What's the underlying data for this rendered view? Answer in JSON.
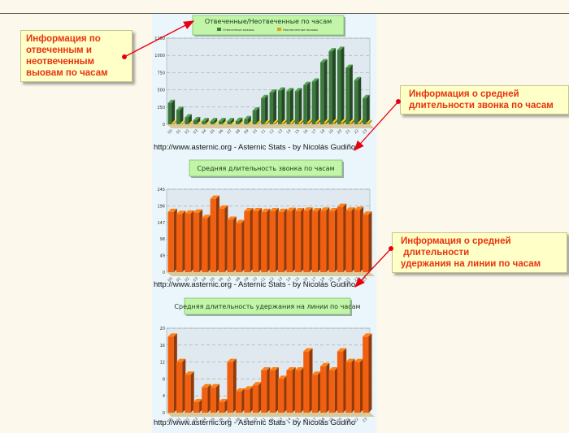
{
  "callouts": [
    {
      "lines": [
        "Информация по",
        "отвеченным и",
        "неотвеченным",
        "выовам по часам"
      ]
    },
    {
      "lines": [
        "Информация о средней",
        "длительности звонка по часам"
      ]
    },
    {
      "lines": [
        "Информация о средней",
        " длительности",
        "удержания на линии по часам"
      ]
    }
  ],
  "credit": "http://www.asternic.org - Asternic Stats - by Nicolás Gudiño",
  "colors": {
    "answered": "#3d7a3d",
    "unanswered": "#e0a010",
    "orange": "#f06010",
    "title_bg": "#c2f5a8",
    "callout_bg": "#ffffc8",
    "callout_text": "#e8330d",
    "arrow": "#e8000d"
  },
  "chart_data": [
    {
      "type": "bar",
      "title": "Отвеченные/Неотвеченные по часам",
      "ylim": [
        0,
        1250
      ],
      "yticks": [
        "1250",
        "1000",
        "750",
        "500",
        "250",
        "0"
      ],
      "categories": [
        "00",
        "01",
        "02",
        "03",
        "04",
        "05",
        "06",
        "07",
        "08",
        "09",
        "10",
        "11",
        "12",
        "13",
        "14",
        "15",
        "16",
        "17",
        "18",
        "19",
        "20",
        "21",
        "22",
        "23"
      ],
      "series": [
        {
          "name": "Отвеченные вызовы",
          "values": [
            310,
            210,
            100,
            60,
            45,
            45,
            45,
            45,
            50,
            75,
            200,
            380,
            460,
            490,
            480,
            480,
            570,
            620,
            900,
            1060,
            1080,
            820,
            640,
            380
          ]
        },
        {
          "name": "Неотвеченные вызовы",
          "values": [
            15,
            10,
            5,
            3,
            2,
            2,
            2,
            2,
            3,
            5,
            10,
            20,
            22,
            25,
            24,
            24,
            26,
            28,
            30,
            32,
            34,
            28,
            24,
            18
          ]
        }
      ],
      "grid": true,
      "legend": "top"
    },
    {
      "type": "bar",
      "title": "Средняя длительность звонка по часам",
      "ylim": [
        0,
        245
      ],
      "yticks": [
        "245",
        "196",
        "147",
        "98",
        "49",
        "0"
      ],
      "categories": [
        "00",
        "01",
        "02",
        "03",
        "04",
        "05",
        "06",
        "07",
        "08",
        "09",
        "10",
        "11",
        "12",
        "13",
        "14",
        "15",
        "16",
        "17",
        "18",
        "19",
        "20",
        "21",
        "22",
        "23"
      ],
      "values": [
        178,
        172,
        173,
        176,
        160,
        217,
        188,
        155,
        145,
        180,
        180,
        178,
        180,
        178,
        181,
        180,
        182,
        180,
        182,
        180,
        193,
        182,
        184,
        170
      ],
      "grid": true
    },
    {
      "type": "bar",
      "title": "Средняя длительность удержания на линии по часам",
      "ylim": [
        0,
        20
      ],
      "yticks": [
        "20",
        "16",
        "12",
        "8",
        "4",
        "0"
      ],
      "categories": [
        "00",
        "01",
        "02",
        "03",
        "04",
        "05",
        "06",
        "07",
        "08",
        "09",
        "10",
        "11",
        "12",
        "13",
        "14",
        "15",
        "16",
        "17",
        "18",
        "19",
        "20",
        "21",
        "22",
        "23"
      ],
      "values": [
        18,
        12,
        9,
        2.5,
        6,
        6,
        2.5,
        12,
        5,
        5.5,
        6.5,
        10,
        10,
        8,
        10,
        10,
        14.5,
        9,
        11,
        10,
        14.5,
        12,
        12,
        18
      ],
      "grid": true
    }
  ]
}
